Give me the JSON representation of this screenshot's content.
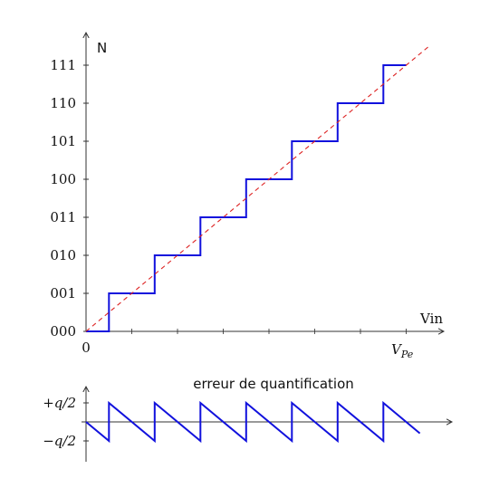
{
  "chart_data": [
    {
      "type": "line",
      "title": "",
      "xlabel": "Vin",
      "ylabel": "N",
      "x_tick_labels": {
        "zero": "0",
        "full_scale": "V_Pe"
      },
      "x_full_scale_label": {
        "main": "V",
        "sub": "Pe"
      },
      "x_divisions": 8,
      "xlim": [
        0,
        7.55
      ],
      "ylim": [
        0,
        7.55
      ],
      "y_tick_labels": [
        "000",
        "001",
        "010",
        "011",
        "100",
        "101",
        "110",
        "111"
      ],
      "series": [
        {
          "style": "step",
          "color": "#1111dd",
          "x": [
            0,
            0.5,
            0.5,
            1.5,
            1.5,
            2.5,
            2.5,
            3.5,
            3.5,
            4.5,
            4.5,
            5.5,
            5.5,
            6.5,
            6.5,
            7
          ],
          "y": [
            0,
            0,
            1,
            1,
            2,
            2,
            3,
            3,
            4,
            4,
            5,
            5,
            6,
            6,
            7,
            7
          ]
        },
        {
          "style": "dashed",
          "color": "#dd2222",
          "x": [
            0,
            7.5
          ],
          "y": [
            0,
            7.5
          ]
        }
      ]
    },
    {
      "type": "line",
      "title": "erreur de quantification",
      "y_tick_labels": [
        "+q/2",
        "−q/2"
      ],
      "y_tick_values": [
        0.5,
        -0.5
      ],
      "ylim": [
        -1,
        1
      ],
      "series": [
        {
          "style": "sawtooth",
          "color": "#1111dd",
          "x": [
            0,
            0.5,
            0.5,
            1.5,
            1.5,
            2.5,
            2.5,
            3.5,
            3.5,
            4.5,
            4.5,
            5.5,
            5.5,
            6.5,
            6.5,
            7.3
          ],
          "y": [
            0,
            -0.5,
            0.5,
            -0.5,
            0.5,
            -0.5,
            0.5,
            -0.5,
            0.5,
            -0.5,
            0.5,
            -0.5,
            0.5,
            -0.5,
            0.5,
            -0.3
          ]
        }
      ]
    }
  ]
}
